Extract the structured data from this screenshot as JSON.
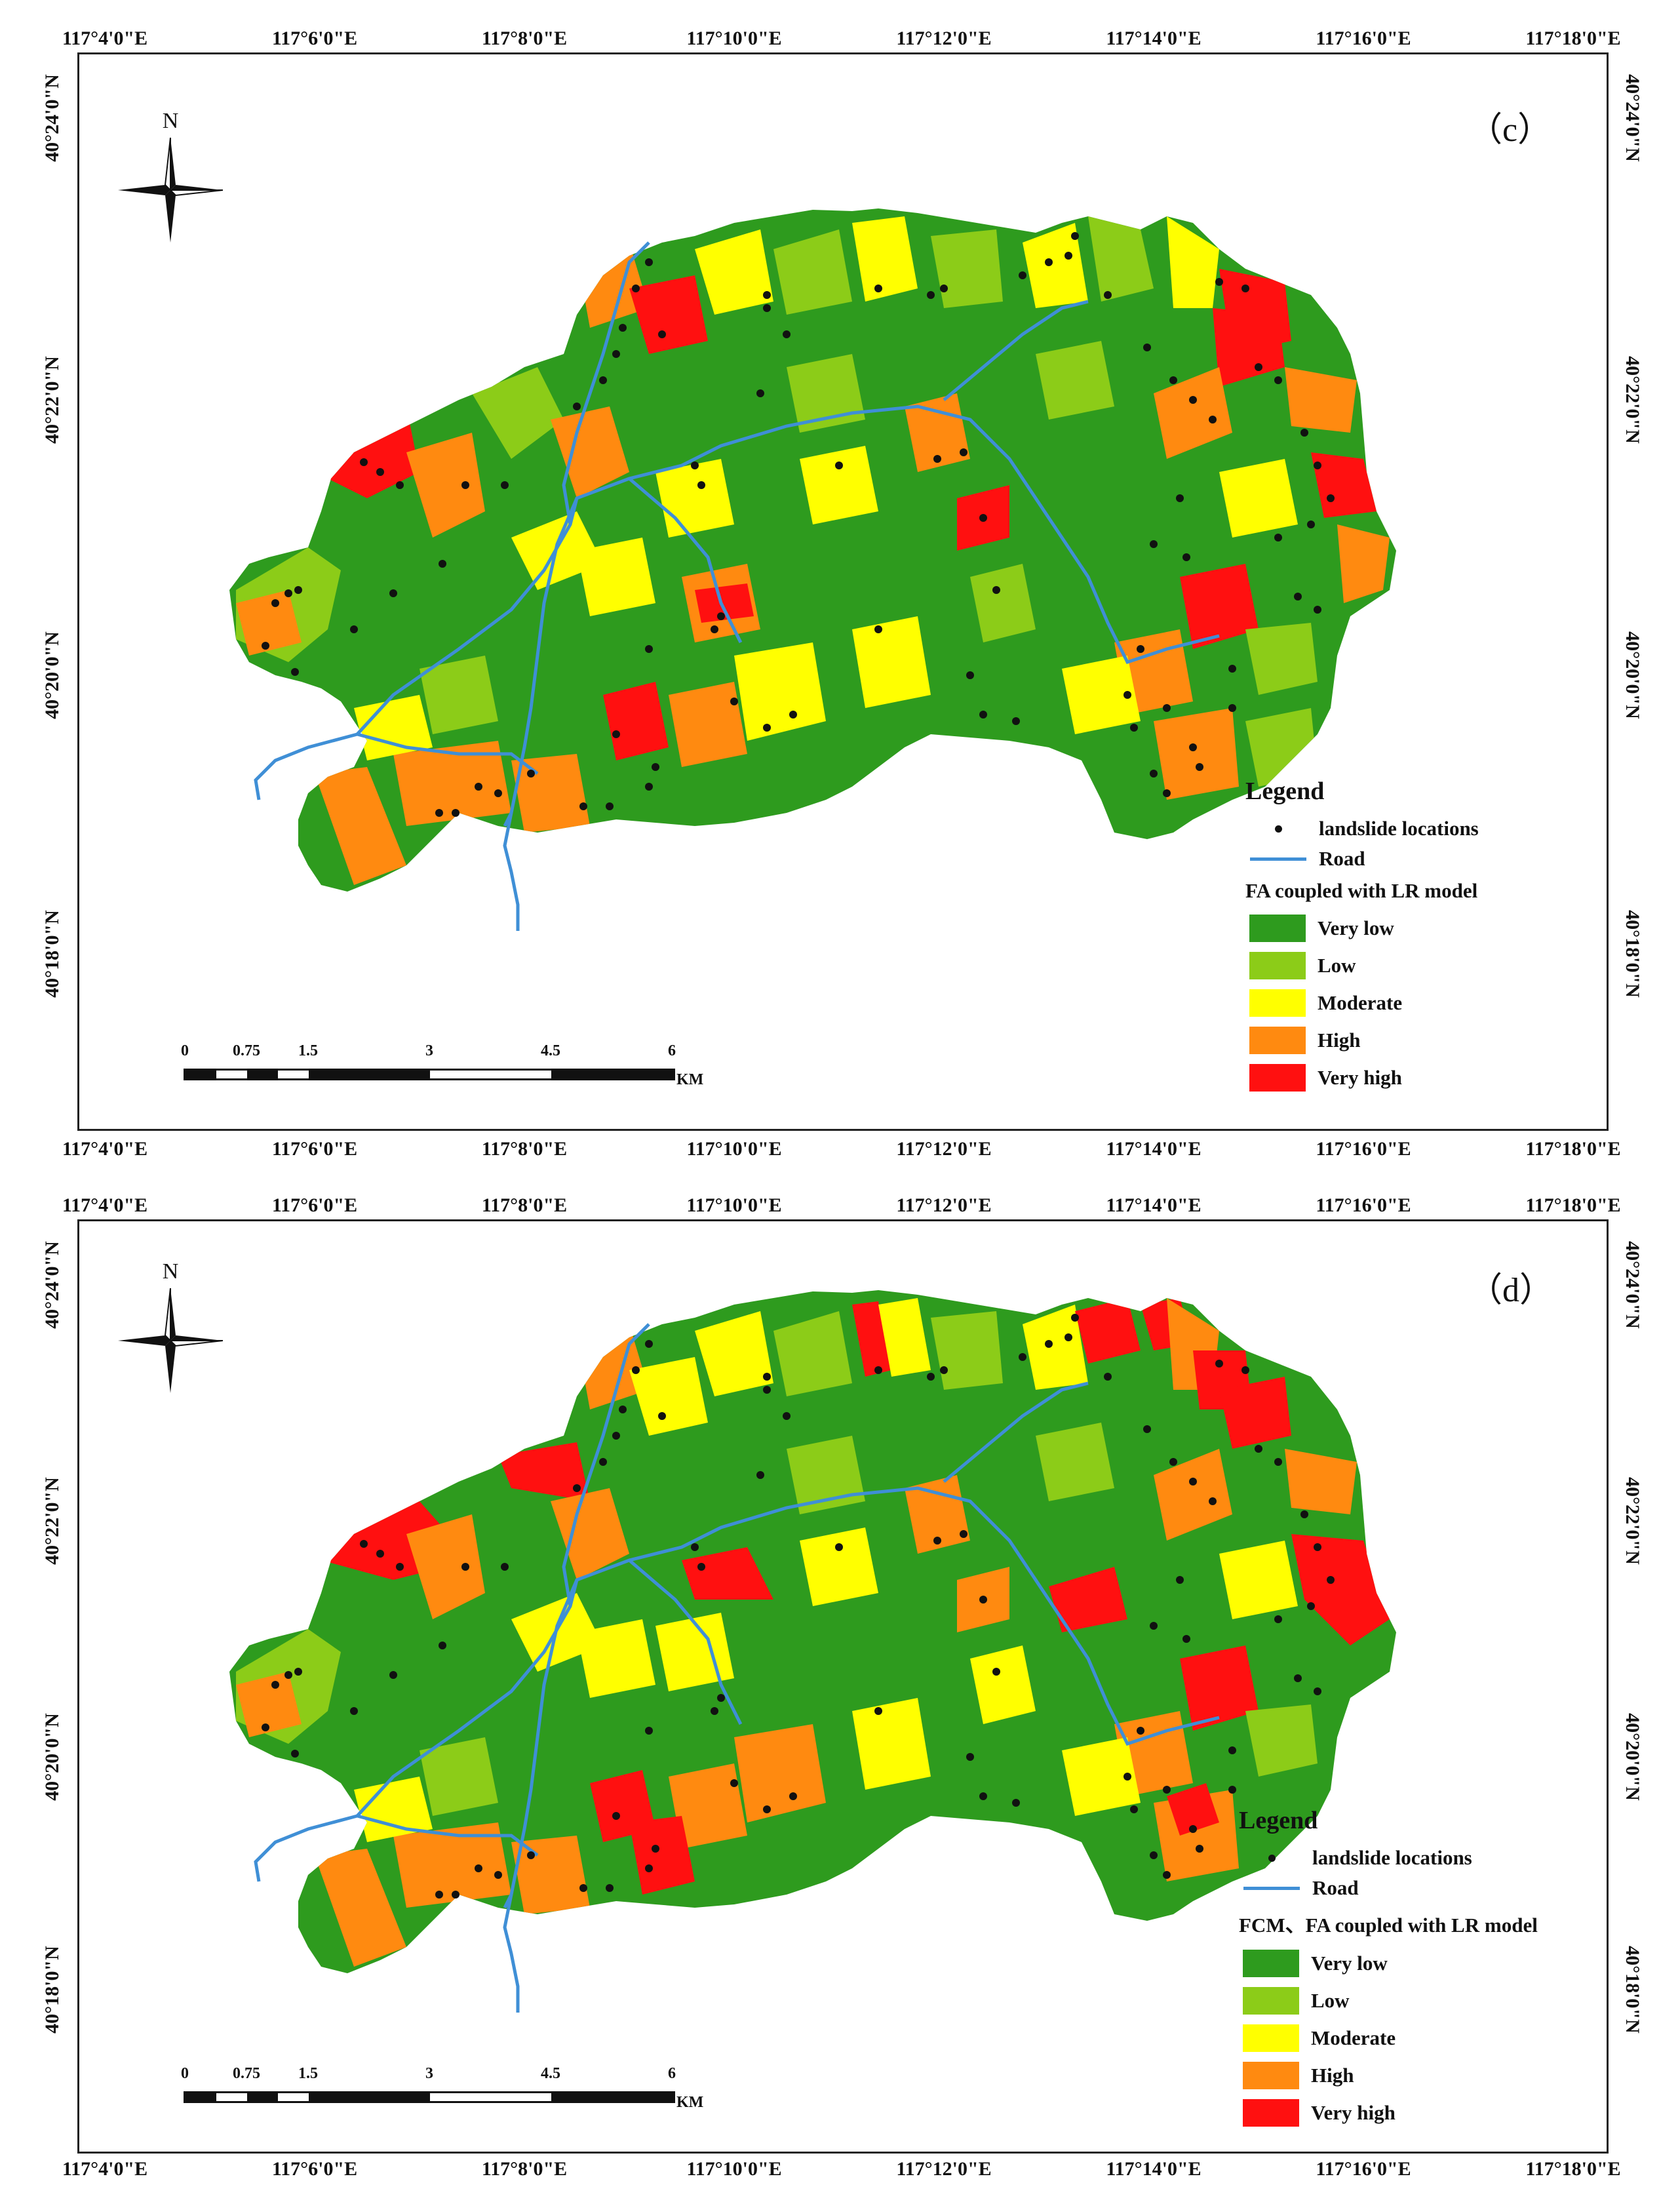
{
  "panels": [
    {
      "id": "c",
      "label": "（c）",
      "lon_ticks": [
        "117°4'0\"E",
        "117°6'0\"E",
        "117°8'0\"E",
        "117°10'0\"E",
        "117°12'0\"E",
        "117°14'0\"E",
        "117°16'0\"E",
        "117°18'0\"E"
      ],
      "lat_ticks": [
        "40°24'0\"N",
        "40°22'0\"N",
        "40°20'0\"N",
        "40°18'0\"N"
      ],
      "north_label": "N",
      "legend": {
        "title": "Legend",
        "landslide_label": "landslide locations",
        "road_label": "Road",
        "model": "FA coupled with LR model",
        "classes": [
          "Very low",
          "Low",
          "Moderate",
          "High",
          "Very high"
        ]
      },
      "scale": {
        "labels": [
          "0",
          "0.75",
          "1.5",
          "3",
          "4.5",
          "6"
        ],
        "unit": "KM"
      }
    },
    {
      "id": "d",
      "label": "（d）",
      "lon_ticks": [
        "117°4'0\"E",
        "117°6'0\"E",
        "117°8'0\"E",
        "117°10'0\"E",
        "117°12'0\"E",
        "117°14'0\"E",
        "117°16'0\"E",
        "117°18'0\"E"
      ],
      "lat_ticks": [
        "40°24'0\"N",
        "40°22'0\"N",
        "40°20'0\"N",
        "40°18'0\"N"
      ],
      "north_label": "N",
      "legend": {
        "title": "Legend",
        "landslide_label": "landslide locations",
        "road_label": "Road",
        "model": "FCM、FA coupled with LR model",
        "classes": [
          "Very low",
          "Low",
          "Moderate",
          "High",
          "Very high"
        ]
      },
      "scale": {
        "labels": [
          "0",
          "0.75",
          "1.5",
          "3",
          "4.5",
          "6"
        ],
        "unit": "KM"
      }
    }
  ],
  "class_colors": {
    "Very low": "#2e9b1e",
    "Low": "#8ccc18",
    "Moderate": "#ffff00",
    "High": "#ff8a10",
    "Very high": "#ff1010"
  },
  "road_color": "#3f8fd6"
}
